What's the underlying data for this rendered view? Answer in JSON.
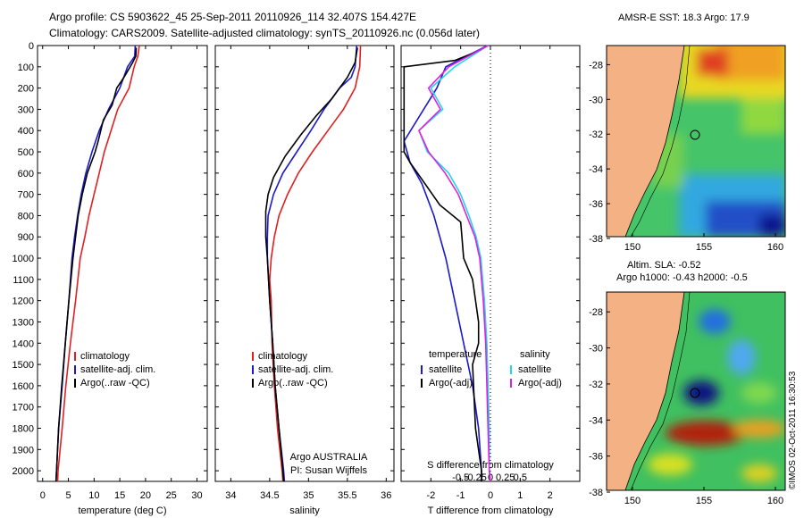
{
  "header": {
    "title_line1": "Argo profile: CS 5903622_45 25-Sep-2011 20110926_114 32.407S 154.427E",
    "title_line2": "Climatology: CARS2009. Satellite-adjusted climatology: synTS_20110926.nc (0.056d later)"
  },
  "maps": {
    "sst_title": "AMSR-E SST: 18.3 Argo: 17.9",
    "sla_title_1": "Altim. SLA: -0.52",
    "sla_title_2": "Argo h1000: -0.43 h2000: -0.5",
    "copyright": "©IMOS 02-Oct-2011 16:30:53",
    "lat_ticks": [
      "-28",
      "-30",
      "-32",
      "-34",
      "-36",
      "-38"
    ],
    "lon_ticks": [
      "150",
      "155",
      "160"
    ],
    "colors": {
      "land": "#f4b183",
      "ocean_mid": "#4fc86a"
    }
  },
  "chart_data": [
    {
      "type": "line",
      "xlabel": "temperature (deg C)",
      "ylabel": "",
      "xlim": [
        -1,
        32
      ],
      "ylim": [
        2050,
        0
      ],
      "xticks": [
        0,
        5,
        10,
        15,
        20,
        25,
        30
      ],
      "yticks": [
        0,
        100,
        200,
        300,
        400,
        500,
        600,
        700,
        800,
        900,
        1000,
        1100,
        1200,
        1300,
        1400,
        1500,
        1600,
        1700,
        1800,
        1900,
        2000
      ],
      "legend": [
        "climatology",
        "satellite-adj. clim.",
        "Argo(..raw -QC)"
      ],
      "legend_position": "lower-center",
      "series": [
        {
          "name": "climatology",
          "color": "#e02020",
          "points": [
            [
              18.8,
              0
            ],
            [
              18.5,
              50
            ],
            [
              17.8,
              100
            ],
            [
              16.8,
              200
            ],
            [
              14.6,
              300
            ],
            [
              13.3,
              400
            ],
            [
              12,
              500
            ],
            [
              11,
              600
            ],
            [
              10,
              700
            ],
            [
              9,
              800
            ],
            [
              8.2,
              900
            ],
            [
              7.3,
              1000
            ],
            [
              6.4,
              1200
            ],
            [
              5.4,
              1400
            ],
            [
              4.5,
              1600
            ],
            [
              3.8,
              1800
            ],
            [
              3,
              2000
            ],
            [
              2.9,
              2050
            ]
          ]
        },
        {
          "name": "satellite-adj. clim.",
          "color": "#1a1acc",
          "points": [
            [
              18,
              0
            ],
            [
              17.9,
              50
            ],
            [
              16.5,
              100
            ],
            [
              15,
              200
            ],
            [
              12.8,
              300
            ],
            [
              11,
              400
            ],
            [
              9.6,
              500
            ],
            [
              8.4,
              600
            ],
            [
              7.5,
              700
            ],
            [
              6.8,
              800
            ],
            [
              6.2,
              900
            ],
            [
              5.7,
              1000
            ],
            [
              5.1,
              1200
            ],
            [
              4.4,
              1400
            ],
            [
              3.8,
              1600
            ],
            [
              3.1,
              1800
            ],
            [
              2.7,
              2000
            ],
            [
              2.6,
              2050
            ]
          ]
        },
        {
          "name": "Argo(..raw -QC)",
          "color": "#000000",
          "points": [
            [
              18.2,
              10
            ],
            [
              18.1,
              50
            ],
            [
              17.5,
              80
            ],
            [
              15.8,
              150
            ],
            [
              14.4,
              200
            ],
            [
              13.5,
              280
            ],
            [
              11.8,
              350
            ],
            [
              10.8,
              450
            ],
            [
              10.2,
              500
            ],
            [
              8.7,
              600
            ],
            [
              7.7,
              700
            ],
            [
              6.9,
              800
            ],
            [
              6.4,
              900
            ],
            [
              5.9,
              1000
            ],
            [
              5.1,
              1200
            ],
            [
              4.4,
              1400
            ],
            [
              3.7,
              1600
            ],
            [
              3.1,
              1800
            ],
            [
              2.7,
              2000
            ],
            [
              2.6,
              2050
            ]
          ]
        }
      ]
    },
    {
      "type": "line",
      "xlabel": "salinity",
      "xlim": [
        33.8,
        36.1
      ],
      "ylim": [
        2050,
        0
      ],
      "xticks": [
        34,
        34.5,
        35,
        35.5,
        36
      ],
      "xtick_labels": [
        "34",
        "34.5",
        "35",
        "35.5",
        "36"
      ],
      "legend": [
        "climatology",
        "satellite-adj. clim.",
        "Argo(..raw -QC)"
      ],
      "legend_position": "lower-center",
      "annotation_1": "Argo AUSTRALIA",
      "annotation_2": "PI: Susan Wijffels",
      "series": [
        {
          "name": "climatology",
          "color": "#e02020",
          "points": [
            [
              35.67,
              0
            ],
            [
              35.66,
              100
            ],
            [
              35.6,
              200
            ],
            [
              35.45,
              300
            ],
            [
              35.25,
              400
            ],
            [
              35.05,
              500
            ],
            [
              34.87,
              600
            ],
            [
              34.73,
              700
            ],
            [
              34.62,
              800
            ],
            [
              34.56,
              900
            ],
            [
              34.52,
              1000
            ],
            [
              34.5,
              1100
            ],
            [
              34.52,
              1200
            ],
            [
              34.53,
              1400
            ],
            [
              34.56,
              1600
            ],
            [
              34.6,
              1800
            ],
            [
              34.66,
              2000
            ],
            [
              34.67,
              2050
            ]
          ]
        },
        {
          "name": "satellite-adj. clim.",
          "color": "#1a1acc",
          "points": [
            [
              35.62,
              0
            ],
            [
              35.6,
              100
            ],
            [
              35.55,
              150
            ],
            [
              35.4,
              200
            ],
            [
              35.2,
              300
            ],
            [
              35.03,
              400
            ],
            [
              34.85,
              500
            ],
            [
              34.67,
              600
            ],
            [
              34.55,
              700
            ],
            [
              34.48,
              800
            ],
            [
              34.47,
              900
            ],
            [
              34.47,
              1000
            ],
            [
              34.5,
              1200
            ],
            [
              34.54,
              1400
            ],
            [
              34.57,
              1600
            ],
            [
              34.62,
              1800
            ],
            [
              34.68,
              2000
            ],
            [
              34.69,
              2050
            ]
          ]
        },
        {
          "name": "Argo(..raw -QC)",
          "color": "#000000",
          "points": [
            [
              35.63,
              10
            ],
            [
              35.6,
              80
            ],
            [
              35.5,
              150
            ],
            [
              35.3,
              250
            ],
            [
              35.1,
              330
            ],
            [
              34.9,
              420
            ],
            [
              34.7,
              520
            ],
            [
              34.55,
              620
            ],
            [
              34.48,
              700
            ],
            [
              34.45,
              780
            ],
            [
              34.45,
              900
            ],
            [
              34.47,
              1000
            ],
            [
              34.5,
              1200
            ],
            [
              34.54,
              1400
            ],
            [
              34.57,
              1600
            ],
            [
              34.62,
              1800
            ],
            [
              34.67,
              2000
            ],
            [
              34.68,
              2050
            ]
          ]
        }
      ]
    },
    {
      "type": "line",
      "xlabel_top": "S difference from climatology",
      "xlabel": "T difference from climatology",
      "t_xlim": [
        -3,
        3
      ],
      "t_xticks": [
        -2,
        -1,
        0,
        1,
        2
      ],
      "s_xticks": [
        -0.5,
        -0.25,
        0,
        0.25,
        0.5
      ],
      "s_xtick_labels": [
        "-0.5",
        "-0.25",
        "0",
        "0.25",
        "0.5"
      ],
      "ylim": [
        2050,
        0
      ],
      "legend_temperature_heading": "temperature",
      "legend_salinity_heading": "salinity",
      "legend_temperature": [
        "satellite",
        "Argo(-adj)"
      ],
      "legend_salinity": [
        "satellite",
        "Argo(-adj)"
      ],
      "series": [
        {
          "name": "temperature satellite",
          "color": "#1a1acc",
          "axis": "T",
          "points": [
            [
              -0.1,
              0
            ],
            [
              -1.5,
              100
            ],
            [
              -1.8,
              200
            ],
            [
              -2.9,
              450
            ],
            [
              -2.7,
              550
            ],
            [
              -2.3,
              650
            ],
            [
              -1.9,
              800
            ],
            [
              -1.5,
              1000
            ],
            [
              -1.2,
              1200
            ],
            [
              -0.9,
              1400
            ],
            [
              -0.6,
              1600
            ],
            [
              -0.4,
              1800
            ],
            [
              -0.3,
              2000
            ],
            [
              -0.3,
              2050
            ]
          ]
        },
        {
          "name": "temperature Argo(-adj)",
          "color": "#000000",
          "axis": "T",
          "points": [
            [
              -0.3,
              20
            ],
            [
              -1.2,
              70
            ],
            [
              -2.9,
              100
            ],
            [
              -2.9,
              500
            ],
            [
              -2.7,
              550
            ],
            [
              -2.2,
              650
            ],
            [
              -1.7,
              750
            ],
            [
              -1.0,
              830
            ],
            [
              -0.9,
              1000
            ],
            [
              -0.6,
              1100
            ],
            [
              -0.4,
              1300
            ],
            [
              -0.4,
              1400
            ],
            [
              -0.6,
              1500
            ],
            [
              -0.5,
              1800
            ],
            [
              -0.3,
              2000
            ],
            [
              -0.3,
              2050
            ]
          ]
        },
        {
          "name": "salinity satellite",
          "color": "#22d8e8",
          "axis": "S",
          "points": [
            [
              -0.02,
              0
            ],
            [
              -0.3,
              100
            ],
            [
              -0.5,
              200
            ],
            [
              -0.4,
              300
            ],
            [
              -0.6,
              400
            ],
            [
              -0.53,
              500
            ],
            [
              -0.35,
              600
            ],
            [
              -0.25,
              700
            ],
            [
              -0.18,
              800
            ],
            [
              -0.12,
              900
            ],
            [
              -0.08,
              1000
            ],
            [
              -0.05,
              1200
            ],
            [
              -0.03,
              1400
            ],
            [
              -0.02,
              1600
            ],
            [
              -0.01,
              1800
            ],
            [
              -0.01,
              2000
            ],
            [
              0,
              2050
            ]
          ]
        },
        {
          "name": "salinity Argo(-adj)",
          "color": "#e020e0",
          "axis": "S",
          "points": [
            [
              -0.02,
              0
            ],
            [
              -0.35,
              100
            ],
            [
              -0.52,
              200
            ],
            [
              -0.42,
              300
            ],
            [
              -0.6,
              400
            ],
            [
              -0.52,
              500
            ],
            [
              -0.38,
              600
            ],
            [
              -0.27,
              700
            ],
            [
              -0.2,
              800
            ],
            [
              -0.13,
              900
            ],
            [
              -0.09,
              1000
            ],
            [
              -0.06,
              1200
            ],
            [
              -0.04,
              1400
            ],
            [
              -0.03,
              1600
            ],
            [
              -0.02,
              1800
            ],
            [
              -0.01,
              2000
            ],
            [
              0,
              2050
            ]
          ]
        }
      ]
    }
  ]
}
